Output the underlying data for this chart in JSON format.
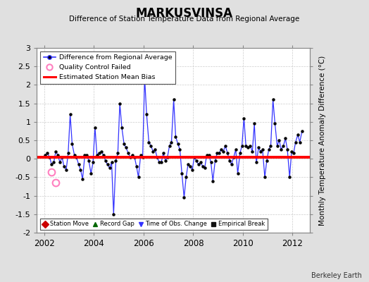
{
  "title": "MARKUSVINSA",
  "subtitle": "Difference of Station Temperature Data from Regional Average",
  "ylabel": "Monthly Temperature Anomaly Difference (°C)",
  "credit": "Berkeley Earth",
  "bias_value": 0.05,
  "ylim": [
    -2,
    3
  ],
  "xlim": [
    2001.7,
    2012.7
  ],
  "yticks": [
    -2,
    -1.5,
    -1,
    -0.5,
    0,
    0.5,
    1,
    1.5,
    2,
    2.5,
    3
  ],
  "xticks": [
    2002,
    2004,
    2006,
    2008,
    2010,
    2012
  ],
  "background_color": "#e0e0e0",
  "plot_bg_color": "#ffffff",
  "line_color": "#3333ff",
  "marker_color": "#000000",
  "bias_color": "#ff0000",
  "qc_color": "#ff80c0",
  "time_data": [
    2002.04,
    2002.12,
    2002.21,
    2002.29,
    2002.38,
    2002.46,
    2002.54,
    2002.63,
    2002.71,
    2002.79,
    2002.88,
    2002.96,
    2003.04,
    2003.12,
    2003.21,
    2003.29,
    2003.38,
    2003.46,
    2003.54,
    2003.63,
    2003.71,
    2003.79,
    2003.88,
    2003.96,
    2004.04,
    2004.12,
    2004.21,
    2004.29,
    2004.38,
    2004.46,
    2004.54,
    2004.63,
    2004.71,
    2004.79,
    2004.88,
    2004.96,
    2005.04,
    2005.12,
    2005.21,
    2005.29,
    2005.38,
    2005.46,
    2005.54,
    2005.63,
    2005.71,
    2005.79,
    2005.88,
    2005.96,
    2006.04,
    2006.12,
    2006.21,
    2006.29,
    2006.38,
    2006.46,
    2006.54,
    2006.63,
    2006.71,
    2006.79,
    2006.88,
    2006.96,
    2007.04,
    2007.12,
    2007.21,
    2007.29,
    2007.38,
    2007.46,
    2007.54,
    2007.63,
    2007.71,
    2007.79,
    2007.88,
    2007.96,
    2008.04,
    2008.12,
    2008.21,
    2008.29,
    2008.38,
    2008.46,
    2008.54,
    2008.63,
    2008.71,
    2008.79,
    2008.88,
    2008.96,
    2009.04,
    2009.12,
    2009.21,
    2009.29,
    2009.38,
    2009.46,
    2009.54,
    2009.63,
    2009.71,
    2009.79,
    2009.88,
    2009.96,
    2010.04,
    2010.12,
    2010.21,
    2010.29,
    2010.38,
    2010.46,
    2010.54,
    2010.63,
    2010.71,
    2010.79,
    2010.88,
    2010.96,
    2011.04,
    2011.12,
    2011.21,
    2011.29,
    2011.38,
    2011.46,
    2011.54,
    2011.63,
    2011.71,
    2011.79,
    2011.88,
    2011.96,
    2012.04,
    2012.12,
    2012.21,
    2012.29,
    2012.38
  ],
  "values": [
    0.1,
    0.15,
    0.05,
    -0.15,
    -0.1,
    0.2,
    0.1,
    -0.1,
    0.05,
    -0.2,
    -0.3,
    0.15,
    1.2,
    0.4,
    0.1,
    0.05,
    -0.15,
    -0.3,
    -0.55,
    0.1,
    0.1,
    -0.05,
    -0.4,
    -0.1,
    0.85,
    0.1,
    0.15,
    0.2,
    0.1,
    -0.05,
    -0.15,
    -0.25,
    -0.1,
    -1.5,
    -0.05,
    0.15,
    1.5,
    0.85,
    0.4,
    0.3,
    0.15,
    0.05,
    0.1,
    0.05,
    -0.2,
    -0.5,
    0.1,
    0.05,
    2.2,
    1.2,
    0.45,
    0.35,
    0.2,
    0.25,
    0.05,
    -0.1,
    -0.1,
    0.15,
    -0.05,
    0.05,
    0.35,
    0.45,
    1.6,
    0.6,
    0.4,
    0.25,
    -0.4,
    -1.05,
    -0.5,
    -0.15,
    -0.2,
    -0.3,
    0.05,
    -0.05,
    -0.15,
    -0.1,
    -0.2,
    -0.25,
    0.1,
    0.1,
    -0.1,
    -0.6,
    -0.05,
    0.15,
    0.15,
    0.25,
    0.2,
    0.35,
    0.15,
    -0.05,
    -0.15,
    0.05,
    0.25,
    -0.4,
    0.15,
    0.35,
    1.1,
    0.35,
    0.3,
    0.35,
    0.2,
    0.95,
    -0.1,
    0.3,
    0.2,
    0.25,
    -0.5,
    -0.05,
    0.25,
    0.35,
    1.6,
    0.95,
    0.35,
    0.5,
    0.25,
    0.35,
    0.55,
    0.25,
    -0.5,
    0.2,
    0.15,
    0.45,
    0.65,
    0.45,
    0.75
  ],
  "qc_failed_times": [
    2002.29,
    2002.46
  ],
  "qc_failed_values": [
    -0.35,
    -0.65
  ]
}
